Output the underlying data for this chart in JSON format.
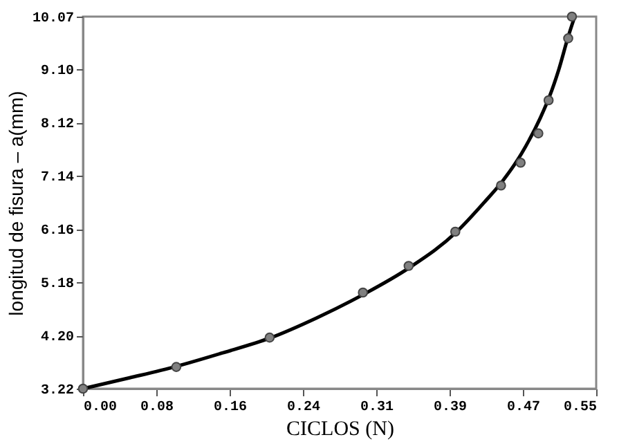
{
  "chart_data": {
    "type": "scatter",
    "xlabel": "CICLOS (N)",
    "ylabel": "longitud de fisura – a(mm)",
    "xlim": [
      0,
      0.55
    ],
    "ylim": [
      3.22,
      10.07
    ],
    "xticks": [
      {
        "value": 0,
        "label": "0.00"
      },
      {
        "value": 0.0786,
        "label": "0.08"
      },
      {
        "value": 0.1571,
        "label": "0.16"
      },
      {
        "value": 0.2357,
        "label": "0.24"
      },
      {
        "value": 0.3143,
        "label": "0.31"
      },
      {
        "value": 0.3929,
        "label": "0.39"
      },
      {
        "value": 0.4714,
        "label": "0.47"
      },
      {
        "value": 0.55,
        "label": "0.55"
      }
    ],
    "yticks": [
      {
        "value": 3.22,
        "label": "3.22"
      },
      {
        "value": 4.199,
        "label": "4.20"
      },
      {
        "value": 5.177,
        "label": "5.18"
      },
      {
        "value": 6.156,
        "label": "6.16"
      },
      {
        "value": 7.136,
        "label": "7.14"
      },
      {
        "value": 8.116,
        "label": "8.12"
      },
      {
        "value": 9.096,
        "label": "9.10"
      },
      {
        "value": 10.07,
        "label": "10.07"
      }
    ],
    "grid": false,
    "series": [
      {
        "type": "line",
        "color": "#000000",
        "marker": "none",
        "line_style": "solid",
        "x": [
          0,
          0.05,
          0.1,
          0.15,
          0.2,
          0.25,
          0.3,
          0.35,
          0.4,
          0.43,
          0.45,
          0.47,
          0.49,
          0.5,
          0.51,
          0.52,
          0.527
        ],
        "values": [
          3.22,
          3.42,
          3.63,
          3.88,
          4.15,
          4.52,
          4.95,
          5.45,
          6.1,
          6.65,
          7.05,
          7.55,
          8.2,
          8.6,
          9.1,
          9.7,
          10.07
        ]
      },
      {
        "color": "#808080",
        "marker": "circle",
        "x": [
          0,
          0.1,
          0.2,
          0.3,
          0.349,
          0.399,
          0.448,
          0.469,
          0.488,
          0.499,
          0.52,
          0.524
        ],
        "values": [
          3.22,
          3.62,
          4.16,
          4.99,
          5.48,
          6.11,
          6.96,
          7.38,
          7.92,
          8.53,
          9.67,
          10.07
        ]
      }
    ]
  }
}
